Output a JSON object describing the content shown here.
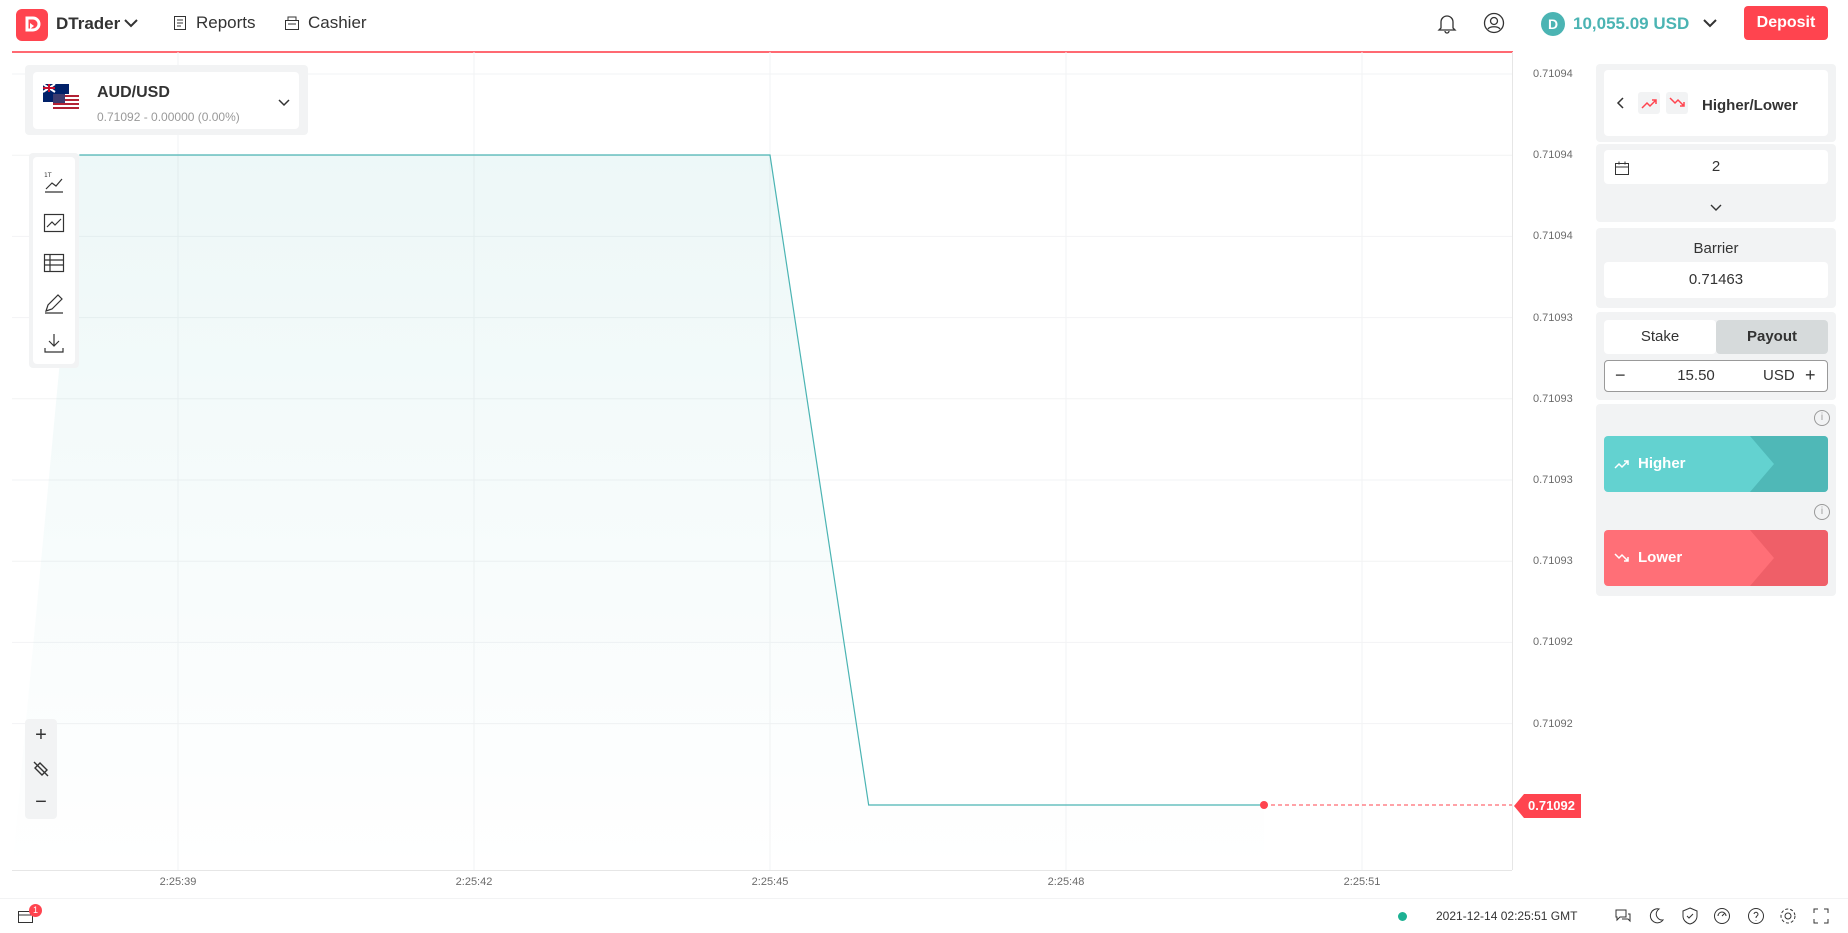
{
  "header": {
    "brand": "DTrader",
    "nav": [
      {
        "label": "Reports"
      },
      {
        "label": "Cashier"
      }
    ],
    "balance": "10,055.09 USD",
    "deposit_label": "Deposit"
  },
  "chart": {
    "symbol": "AUD/USD",
    "symbol_quote": "0.71092 - 0.00000 (0.00%)",
    "current_price": "0.71092",
    "y_ticks": [
      "0.71094",
      "0.71094",
      "0.71094",
      "0.71093",
      "0.71093",
      "0.71093",
      "0.71093",
      "0.71092",
      "0.71092"
    ],
    "x_ticks": [
      "2:25:39",
      "2:25:42",
      "2:25:45",
      "2:25:48",
      "2:25:51"
    ],
    "toolbar_tools": [
      "chart-type",
      "indicators",
      "templates",
      "drawing-tools",
      "download"
    ]
  },
  "chart_data": {
    "type": "line",
    "x": [
      "2:25:38",
      "2:25:45",
      "2:25:46",
      "2:25:49"
    ],
    "y": [
      "0.71094",
      "0.71094",
      "0.71092",
      "0.71092"
    ],
    "xlabel": "",
    "ylabel": "",
    "grid": true
  },
  "panel": {
    "trade_type": "Higher/Lower",
    "duration_value": "2",
    "barrier_label": "Barrier",
    "barrier_value": "0.71463",
    "stake_tab": "Stake",
    "payout_tab": "Payout",
    "amount": "15.50",
    "currency": "USD",
    "higher_label": "Higher",
    "lower_label": "Lower",
    "colors": {
      "higher": "#4bb4b3",
      "lower": "#ff444f"
    }
  },
  "footer": {
    "datetime": "2021-12-14 02:25:51 GMT",
    "notification_count": "1"
  }
}
